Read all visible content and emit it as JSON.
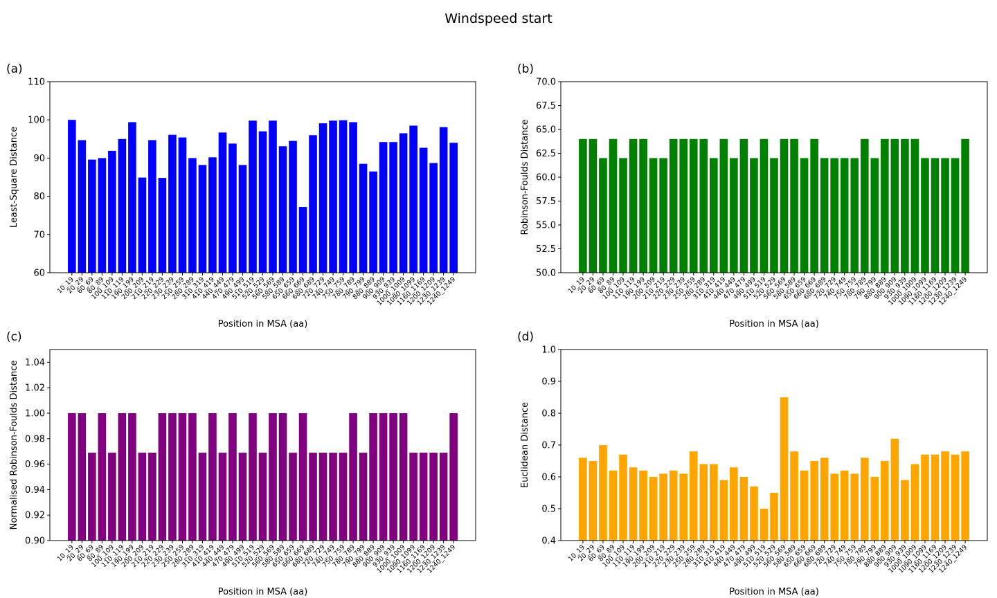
{
  "figure_title": "Windspeed start",
  "chart_data": [
    {
      "type": "bar",
      "panel": "(a)",
      "title": "",
      "xlabel": "Position in MSA (aa)",
      "ylabel": "Least-Square Distance",
      "color": "#0000ff",
      "ylim": [
        60,
        110
      ],
      "yticks": [
        60,
        70,
        80,
        90,
        100,
        110
      ],
      "ytick_labels": [
        "60",
        "70",
        "80",
        "90",
        "100",
        "110"
      ],
      "categories": [
        "10_19",
        "20_29",
        "60_69",
        "80_89",
        "100_109",
        "110_119",
        "190_199",
        "200_209",
        "210_219",
        "220_229",
        "230_239",
        "250_259",
        "280_289",
        "310_319",
        "410_419",
        "440_449",
        "470_479",
        "490_499",
        "510_519",
        "520_529",
        "560_569",
        "580_589",
        "650_659",
        "660_669",
        "680_689",
        "720_729",
        "740_749",
        "750_759",
        "780_789",
        "790_799",
        "880_889",
        "900_909",
        "930_939",
        "1000_1009",
        "1090_1099",
        "1160_1169",
        "1200_1209",
        "1230_1239",
        "1240_1249"
      ],
      "values": [
        100.0,
        94.7,
        89.6,
        90.0,
        91.9,
        95.0,
        99.4,
        84.9,
        94.7,
        84.8,
        96.1,
        95.4,
        90.0,
        88.2,
        90.2,
        96.7,
        93.8,
        88.2,
        99.8,
        97.0,
        99.8,
        93.1,
        94.5,
        77.2,
        96.0,
        99.1,
        99.8,
        99.9,
        99.4,
        88.5,
        86.5,
        94.2,
        94.2,
        96.5,
        98.5,
        92.7,
        88.7,
        98.1,
        94.0
      ],
      "grid": false
    },
    {
      "type": "bar",
      "panel": "(b)",
      "title": "",
      "xlabel": "Position in MSA (aa)",
      "ylabel": "Robinson-Foulds Distance",
      "color": "#008000",
      "ylim": [
        50,
        70
      ],
      "yticks": [
        50,
        52.5,
        55,
        57.5,
        60,
        62.5,
        65,
        67.5,
        70
      ],
      "ytick_labels": [
        "50.0",
        "52.5",
        "55.0",
        "57.5",
        "60.0",
        "62.5",
        "65.0",
        "67.5",
        "70.0"
      ],
      "categories": [
        "10_19",
        "20_29",
        "60_69",
        "80_89",
        "100_109",
        "110_119",
        "190_199",
        "200_209",
        "210_219",
        "220_229",
        "230_239",
        "250_259",
        "280_289",
        "310_319",
        "410_419",
        "440_449",
        "470_479",
        "490_499",
        "510_519",
        "520_529",
        "560_569",
        "580_589",
        "650_659",
        "660_669",
        "680_689",
        "720_729",
        "740_749",
        "750_759",
        "780_789",
        "790_799",
        "880_889",
        "900_909",
        "930_939",
        "1000_1009",
        "1090_1099",
        "1160_1169",
        "1200_1209",
        "1230_1239",
        "1240_1249"
      ],
      "values": [
        64,
        64,
        62,
        64,
        62,
        64,
        64,
        62,
        62,
        64,
        64,
        64,
        64,
        62,
        64,
        62,
        64,
        62,
        64,
        62,
        64,
        64,
        62,
        64,
        62,
        62,
        62,
        62,
        64,
        62,
        64,
        64,
        64,
        64,
        62,
        62,
        62,
        62,
        64
      ],
      "grid": false
    },
    {
      "type": "bar",
      "panel": "(c)",
      "title": "",
      "xlabel": "Position in MSA (aa)",
      "ylabel": "Normalised Robinson-Foulds Distance",
      "color": "#800080",
      "ylim": [
        0.9,
        1.05
      ],
      "yticks": [
        0.9,
        0.92,
        0.94,
        0.96,
        0.98,
        1.0,
        1.02,
        1.04
      ],
      "ytick_labels": [
        "0.90",
        "0.92",
        "0.94",
        "0.96",
        "0.98",
        "1.00",
        "1.02",
        "1.04"
      ],
      "categories": [
        "10_19",
        "20_29",
        "60_69",
        "80_89",
        "100_109",
        "110_119",
        "190_199",
        "200_209",
        "210_219",
        "220_229",
        "230_239",
        "250_259",
        "280_289",
        "310_319",
        "410_419",
        "440_449",
        "470_479",
        "490_499",
        "510_519",
        "520_529",
        "560_569",
        "580_589",
        "650_659",
        "660_669",
        "680_689",
        "720_729",
        "740_749",
        "750_759",
        "780_789",
        "790_799",
        "880_889",
        "900_909",
        "930_939",
        "1000_1009",
        "1090_1099",
        "1160_1169",
        "1200_1209",
        "1230_1239",
        "1240_1249"
      ],
      "values": [
        1.0,
        1.0,
        0.969,
        1.0,
        0.969,
        1.0,
        1.0,
        0.969,
        0.969,
        1.0,
        1.0,
        1.0,
        1.0,
        0.969,
        1.0,
        0.969,
        1.0,
        0.969,
        1.0,
        0.969,
        1.0,
        1.0,
        0.969,
        1.0,
        0.969,
        0.969,
        0.969,
        0.969,
        1.0,
        0.969,
        1.0,
        1.0,
        1.0,
        1.0,
        0.969,
        0.969,
        0.969,
        0.969,
        1.0
      ],
      "grid": false
    },
    {
      "type": "bar",
      "panel": "(d)",
      "title": "",
      "xlabel": "Position in MSA (aa)",
      "ylabel": "Euclidean Distance",
      "color": "#ffa500",
      "ylim": [
        0.4,
        1.0
      ],
      "yticks": [
        0.4,
        0.5,
        0.6,
        0.7,
        0.8,
        0.9,
        1.0
      ],
      "ytick_labels": [
        "0.4",
        "0.5",
        "0.6",
        "0.7",
        "0.8",
        "0.9",
        "1.0"
      ],
      "categories": [
        "10_19",
        "20_29",
        "60_69",
        "80_89",
        "100_109",
        "110_119",
        "190_199",
        "200_209",
        "210_219",
        "220_229",
        "230_239",
        "250_259",
        "280_289",
        "310_319",
        "410_419",
        "440_449",
        "470_479",
        "490_499",
        "510_519",
        "520_529",
        "560_569",
        "580_589",
        "650_659",
        "660_669",
        "680_689",
        "720_729",
        "740_749",
        "750_759",
        "780_789",
        "790_799",
        "880_889",
        "900_909",
        "930_939",
        "1000_1009",
        "1090_1099",
        "1160_1169",
        "1200_1209",
        "1230_1239",
        "1240_1249"
      ],
      "values": [
        0.66,
        0.65,
        0.7,
        0.62,
        0.67,
        0.63,
        0.62,
        0.6,
        0.61,
        0.62,
        0.61,
        0.68,
        0.64,
        0.64,
        0.59,
        0.63,
        0.6,
        0.57,
        0.5,
        0.55,
        0.85,
        0.68,
        0.62,
        0.65,
        0.66,
        0.61,
        0.62,
        0.61,
        0.66,
        0.6,
        0.65,
        0.72,
        0.59,
        0.64,
        0.67,
        0.67,
        0.68,
        0.67,
        0.68
      ],
      "grid": false
    }
  ]
}
